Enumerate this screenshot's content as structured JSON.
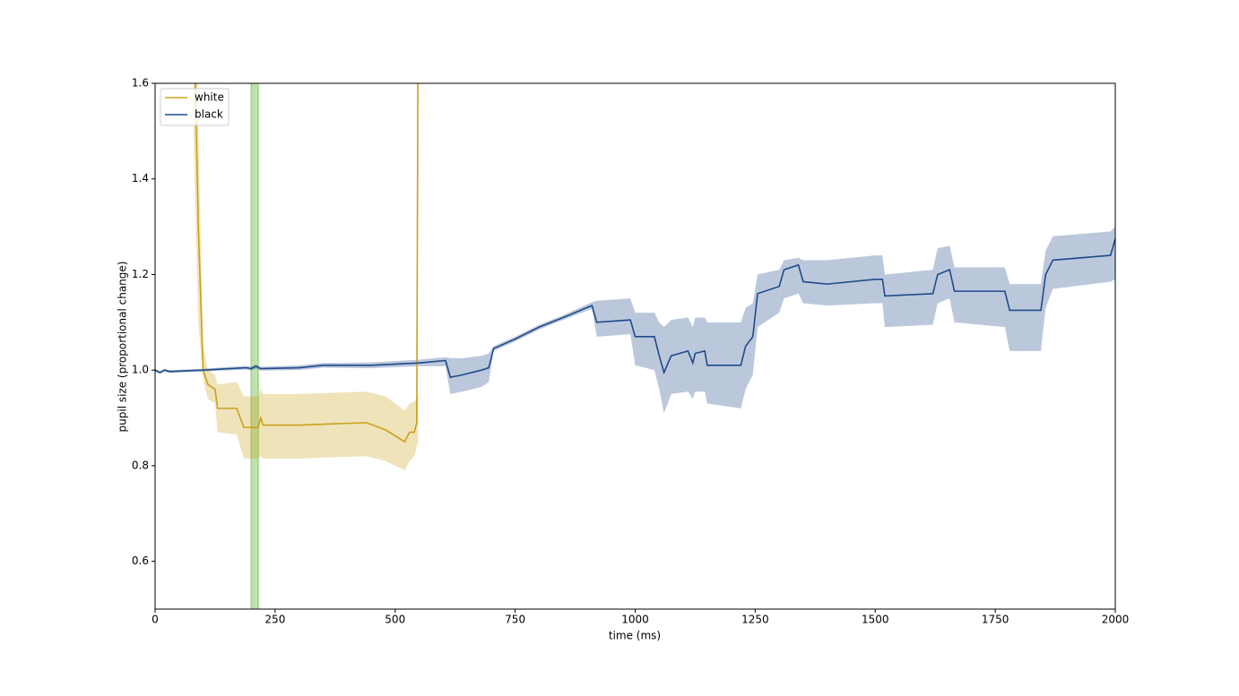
{
  "chart_data": {
    "type": "line",
    "xlabel": "time (ms)",
    "ylabel": "pupil size (proportional change)",
    "xlim": [
      0,
      2000
    ],
    "xticks": [
      0,
      250,
      500,
      750,
      1000,
      1250,
      1500,
      1750,
      2000
    ],
    "ylim": [
      0.5,
      1.6
    ],
    "yticks": [
      0.6,
      0.8,
      {
        "value": 1,
        "label": "1.0"
      },
      1.2,
      1.4,
      1.6
    ],
    "legend": "upper left",
    "span": {
      "xmin": 200,
      "xmax": 215,
      "color": "#8cc66a"
    },
    "series": [
      {
        "name": "white",
        "color": "#c9a21c",
        "x": [
          80,
          90,
          100,
          110,
          125,
          130,
          170,
          185,
          215,
          220,
          225,
          300,
          440,
          480,
          520,
          530,
          540,
          545,
          548
        ],
        "values": [
          1.8,
          1.3,
          1.0,
          0.97,
          0.96,
          0.92,
          0.92,
          0.88,
          0.88,
          0.9,
          0.885,
          0.885,
          0.89,
          0.875,
          0.85,
          0.87,
          0.87,
          0.89,
          1.8
        ],
        "lower": [
          1.5,
          1.1,
          0.98,
          0.94,
          0.93,
          0.87,
          0.865,
          0.815,
          0.815,
          0.82,
          0.815,
          0.815,
          0.82,
          0.81,
          0.79,
          0.81,
          0.82,
          0.84,
          0.85
        ],
        "upper": [
          2.2,
          1.5,
          1.05,
          1.0,
          0.99,
          0.97,
          0.975,
          0.945,
          0.945,
          0.96,
          0.95,
          0.95,
          0.955,
          0.945,
          0.915,
          0.93,
          0.935,
          0.94,
          0.95
        ]
      },
      {
        "name": "black",
        "color": "#1f4a8a",
        "x": [
          0,
          10,
          20,
          30,
          100,
          190,
          200,
          210,
          220,
          300,
          350,
          450,
          550,
          605,
          615,
          640,
          680,
          695,
          705,
          750,
          800,
          850,
          910,
          920,
          990,
          1000,
          1040,
          1050,
          1060,
          1075,
          1110,
          1120,
          1125,
          1145,
          1150,
          1220,
          1230,
          1245,
          1255,
          1300,
          1310,
          1340,
          1350,
          1400,
          1500,
          1515,
          1520,
          1620,
          1630,
          1655,
          1665,
          1770,
          1780,
          1845,
          1855,
          1870,
          1990,
          2000
        ],
        "values": [
          1.0,
          0.995,
          1.0,
          0.997,
          1.0,
          1.005,
          1.003,
          1.008,
          1.003,
          1.005,
          1.01,
          1.01,
          1.015,
          1.02,
          0.985,
          0.99,
          1.0,
          1.005,
          1.045,
          1.065,
          1.09,
          1.11,
          1.135,
          1.1,
          1.105,
          1.07,
          1.07,
          1.03,
          0.995,
          1.03,
          1.04,
          1.015,
          1.035,
          1.04,
          1.01,
          1.01,
          1.05,
          1.07,
          1.16,
          1.175,
          1.21,
          1.22,
          1.185,
          1.18,
          1.19,
          1.19,
          1.155,
          1.16,
          1.2,
          1.21,
          1.165,
          1.165,
          1.125,
          1.125,
          1.2,
          1.23,
          1.24,
          1.275
        ],
        "lower": [
          0.997,
          0.992,
          0.997,
          0.994,
          0.997,
          1.001,
          0.999,
          1.003,
          0.999,
          1.0,
          1.005,
          1.004,
          1.008,
          1.008,
          0.95,
          0.955,
          0.965,
          0.975,
          1.04,
          1.06,
          1.085,
          1.105,
          1.128,
          1.07,
          1.075,
          1.01,
          1.0,
          0.96,
          0.91,
          0.95,
          0.955,
          0.94,
          0.955,
          0.955,
          0.93,
          0.92,
          0.96,
          0.99,
          1.09,
          1.12,
          1.15,
          1.16,
          1.14,
          1.135,
          1.14,
          1.14,
          1.09,
          1.095,
          1.14,
          1.15,
          1.1,
          1.09,
          1.04,
          1.04,
          1.13,
          1.17,
          1.185,
          1.19
        ],
        "upper": [
          1.003,
          0.998,
          1.003,
          1.0,
          1.003,
          1.009,
          1.007,
          1.012,
          1.007,
          1.01,
          1.015,
          1.016,
          1.022,
          1.027,
          1.025,
          1.025,
          1.03,
          1.035,
          1.05,
          1.07,
          1.095,
          1.115,
          1.142,
          1.145,
          1.15,
          1.12,
          1.12,
          1.1,
          1.09,
          1.105,
          1.11,
          1.09,
          1.11,
          1.11,
          1.1,
          1.1,
          1.13,
          1.14,
          1.2,
          1.21,
          1.23,
          1.235,
          1.23,
          1.23,
          1.24,
          1.24,
          1.2,
          1.21,
          1.255,
          1.26,
          1.215,
          1.215,
          1.18,
          1.18,
          1.25,
          1.28,
          1.29,
          1.3
        ]
      }
    ]
  }
}
